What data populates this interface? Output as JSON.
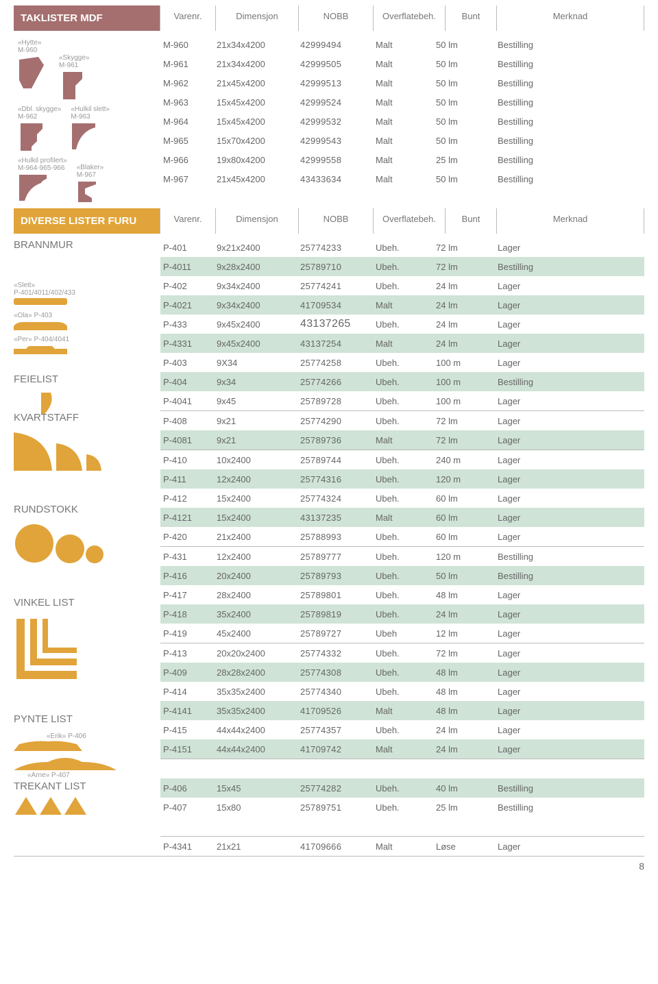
{
  "colors": {
    "mdf": "#a56f6f",
    "furu": "#e1a43a",
    "rowAlt": "#cfe3d6",
    "text": "#666666",
    "border": "#bbbbbb",
    "shapeFill": "#e1a43a",
    "mdfShape": "#a56f6f"
  },
  "headers": {
    "varenr": "Varenr.",
    "dimensjon": "Dimensjon",
    "nobb": "NOBB",
    "overflate": "Overflatebeh.",
    "bunt": "Bunt",
    "merknad": "Merknad"
  },
  "sections": {
    "mdf": {
      "title": "TAKLISTER MDF"
    },
    "furu": {
      "title": "DIVERSE LISTER FURU"
    }
  },
  "mdfProfiles": {
    "p1": "«Hytte»",
    "p1b": "M-960",
    "p2": "«Skygge»",
    "p2b": "M-961",
    "p3": "«Dbl. skygge»",
    "p3b": "M-962",
    "p4": "«Hulkil slett»",
    "p4b": "M-963",
    "p5": "«Hulkil profilert»",
    "p5b": "M-964-965-966",
    "p6": "«Blaker»",
    "p6b": "M-967"
  },
  "mdfRows": [
    {
      "v": "M-960",
      "d": "21x34x4200",
      "n": "42999494",
      "o": "Malt",
      "b": "50 lm",
      "m": "Bestilling"
    },
    {
      "v": "M-961",
      "d": "21x34x4200",
      "n": "42999505",
      "o": "Malt",
      "b": "50 lm",
      "m": "Bestilling"
    },
    {
      "v": "M-962",
      "d": "21x45x4200",
      "n": "42999513",
      "o": "Malt",
      "b": "50 lm",
      "m": "Bestilling"
    },
    {
      "v": "M-963",
      "d": "15x45x4200",
      "n": "42999524",
      "o": "Malt",
      "b": "50 lm",
      "m": "Bestilling"
    },
    {
      "v": "M-964",
      "d": "15x45x4200",
      "n": "42999532",
      "o": "Malt",
      "b": "50 lm",
      "m": "Bestilling"
    },
    {
      "v": "M-965",
      "d": "15x70x4200",
      "n": "42999543",
      "o": "Malt",
      "b": "50 lm",
      "m": "Bestilling"
    },
    {
      "v": "M-966",
      "d": "19x80x4200",
      "n": "42999558",
      "o": "Malt",
      "b": "25 lm",
      "m": "Bestilling"
    },
    {
      "v": "M-967",
      "d": "21x45x4200",
      "n": "43433634",
      "o": "Malt",
      "b": "50 lm",
      "m": "Bestilling"
    }
  ],
  "furuLeft": {
    "brannmur": "BRANNMUR",
    "slett": "«Slett»",
    "slettb": "P-401/4011/402/433",
    "ola": "«Ola» P-403",
    "per": "«Per» P-404/4041",
    "feielist": "FEIELIST",
    "kvartstaff": "KVARTSTAFF",
    "rundstokk": "RUNDSTOKK",
    "vinkel": "VINKEL LIST",
    "pynte": "PYNTE LIST",
    "erik": "«Erik» P-406",
    "arne": "«Arne» P-407",
    "trekant": "TREKANT LIST"
  },
  "furuRows": [
    {
      "v": "P-401",
      "d": "9x21x2400",
      "n": "25774233",
      "o": "Ubeh.",
      "b": "72 lm",
      "m": "Lager",
      "startGroup": "brannmur"
    },
    {
      "v": "P-4011",
      "d": "9x28x2400",
      "n": "25789710",
      "o": "Ubeh.",
      "b": "72 lm",
      "m": "Bestilling"
    },
    {
      "v": "P-402",
      "d": "9x34x2400",
      "n": "25774241",
      "o": "Ubeh.",
      "b": "24 lm",
      "m": "Lager"
    },
    {
      "v": "P-4021",
      "d": "9x34x2400",
      "n": "41709534",
      "o": "Malt",
      "b": "24 lm",
      "m": "Lager"
    },
    {
      "v": "P-433",
      "d": "9x45x2400",
      "n": "43137265",
      "o": "Ubeh.",
      "b": "24 lm",
      "m": "Lager",
      "bigN": true
    },
    {
      "v": "P-4331",
      "d": "9x45x2400",
      "n": "43137254",
      "o": "Malt",
      "b": "24 lm",
      "m": "Lager"
    },
    {
      "v": "P-403",
      "d": "9X34",
      "n": "25774258",
      "o": "Ubeh.",
      "b": "100 m",
      "m": "Lager"
    },
    {
      "v": "P-404",
      "d": "9x34",
      "n": "25774266",
      "o": "Ubeh.",
      "b": "100 m",
      "m": "Bestilling"
    },
    {
      "v": "P-4041",
      "d": "9x45",
      "n": "25789728",
      "o": "Ubeh.",
      "b": "100 m",
      "m": "Lager"
    },
    {
      "v": "P-408",
      "d": "9x21",
      "n": "25774290",
      "o": "Ubeh.",
      "b": "72 lm",
      "m": "Lager",
      "startGroup": "feielist"
    },
    {
      "v": "P-4081",
      "d": "9x21",
      "n": "25789736",
      "o": "Malt",
      "b": "72 lm",
      "m": "Lager"
    },
    {
      "v": "P-410",
      "d": "10x2400",
      "n": "25789744",
      "o": "Ubeh.",
      "b": "240 m",
      "m": "Lager",
      "startGroup": "kvartstaff"
    },
    {
      "v": "P-411",
      "d": "12x2400",
      "n": "25774316",
      "o": "Ubeh.",
      "b": "120 m",
      "m": "Lager"
    },
    {
      "v": "P-412",
      "d": "15x2400",
      "n": "25774324",
      "o": "Ubeh.",
      "b": "60 lm",
      "m": "Lager"
    },
    {
      "v": "P-4121",
      "d": "15x2400",
      "n": "43137235",
      "o": "Malt",
      "b": "60 lm",
      "m": "Lager"
    },
    {
      "v": "P-420",
      "d": "21x2400",
      "n": "25788993",
      "o": "Ubeh.",
      "b": "60 lm",
      "m": "Lager"
    },
    {
      "v": "P-431",
      "d": "12x2400",
      "n": "25789777",
      "o": "Ubeh.",
      "b": "120 m",
      "m": "Bestilling",
      "startGroup": "rundstokk"
    },
    {
      "v": "P-416",
      "d": "20x2400",
      "n": "25789793",
      "o": "Ubeh.",
      "b": "50 lm",
      "m": "Bestilling"
    },
    {
      "v": "P-417",
      "d": "28x2400",
      "n": "25789801",
      "o": "Ubeh.",
      "b": "48 lm",
      "m": "Lager"
    },
    {
      "v": "P-418",
      "d": "35x2400",
      "n": "25789819",
      "o": "Ubeh.",
      "b": "24 lm",
      "m": "Lager"
    },
    {
      "v": "P-419",
      "d": "45x2400",
      "n": "25789727",
      "o": "Ubeh",
      "b": "12 lm",
      "m": "Lager"
    },
    {
      "v": "P-413",
      "d": "20x20x2400",
      "n": "25774332",
      "o": "Ubeh.",
      "b": "72 lm",
      "m": "Lager",
      "startGroup": "vinkel"
    },
    {
      "v": "P-409",
      "d": "28x28x2400",
      "n": "25774308",
      "o": "Ubeh.",
      "b": "48 lm",
      "m": "Lager"
    },
    {
      "v": "P-414",
      "d": "35x35x2400",
      "n": "25774340",
      "o": "Ubeh.",
      "b": "48 lm",
      "m": "Lager"
    },
    {
      "v": "P-4141",
      "d": "35x35x2400",
      "n": "41709526",
      "o": "Malt",
      "b": "48 lm",
      "m": "Lager"
    },
    {
      "v": "P-415",
      "d": "44x44x2400",
      "n": "25774357",
      "o": "Ubeh.",
      "b": "24 lm",
      "m": "Lager"
    },
    {
      "v": "P-4151",
      "d": "44x44x2400",
      "n": "41709742",
      "o": "Malt",
      "b": "24 lm",
      "m": "Lager"
    },
    {
      "v": "",
      "d": "",
      "n": "",
      "o": "",
      "b": "",
      "m": "",
      "startGroup": "pynte",
      "spacer": true
    },
    {
      "v": "P-406",
      "d": "15x45",
      "n": "25774282",
      "o": "Ubeh.",
      "b": "40 lm",
      "m": "Bestilling"
    },
    {
      "v": "P-407",
      "d": "15x80",
      "n": "25789751",
      "o": "Ubeh.",
      "b": "25 lm",
      "m": "Bestilling"
    },
    {
      "v": "",
      "d": "",
      "n": "",
      "o": "",
      "b": "",
      "m": "",
      "spacer": true,
      "plain": true
    },
    {
      "v": "P-4341",
      "d": "21x21",
      "n": "41709666",
      "o": "Malt",
      "b": "Løse",
      "m": "Lager",
      "startGroup": "trekant"
    }
  ],
  "pagenum": "8"
}
